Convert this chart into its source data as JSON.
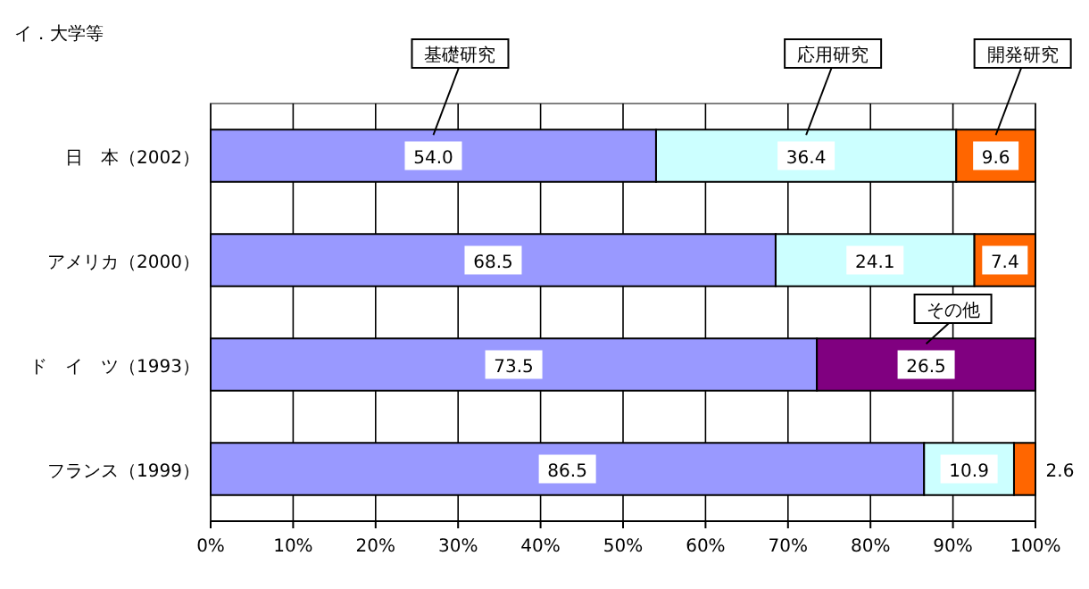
{
  "chart_data": {
    "type": "bar",
    "orientation": "horizontal",
    "stacked": true,
    "title": "イ．大学等",
    "categories": [
      "日　本（2002）",
      "アメリカ（2000）",
      "ド　イ　ツ（1993）",
      "フランス（1999）"
    ],
    "series": [
      {
        "name": "基礎研究",
        "color": "#9999ff",
        "values": [
          54.0,
          68.5,
          73.5,
          86.5
        ],
        "value_labels": [
          "54.0",
          "68.5",
          "73.5",
          "86.5"
        ]
      },
      {
        "name": "応用研究",
        "color": "#ccffff",
        "values": [
          36.4,
          24.1,
          null,
          10.9
        ],
        "value_labels": [
          "36.4",
          "24.1",
          null,
          "10.9"
        ]
      },
      {
        "name": "開発研究",
        "color": "#ff6600",
        "values": [
          9.6,
          7.4,
          null,
          2.6
        ],
        "value_labels": [
          "9.6",
          "7.4",
          null,
          "2.6"
        ]
      },
      {
        "name": "その他",
        "color": "#800080",
        "values": [
          null,
          null,
          26.5,
          null
        ],
        "value_labels": [
          null,
          null,
          "26.5",
          null
        ]
      }
    ],
    "xlim": [
      0,
      100
    ],
    "xticks": [
      {
        "value": 0,
        "label": "0%"
      },
      {
        "value": 10,
        "label": "10%"
      },
      {
        "value": 20,
        "label": "20%"
      },
      {
        "value": 30,
        "label": "30%"
      },
      {
        "value": 40,
        "label": "40%"
      },
      {
        "value": 50,
        "label": "50%"
      },
      {
        "value": 60,
        "label": "60%"
      },
      {
        "value": 70,
        "label": "70%"
      },
      {
        "value": 80,
        "label": "80%"
      },
      {
        "value": 90,
        "label": "90%"
      },
      {
        "value": 100,
        "label": "100%"
      }
    ],
    "grid": "x"
  }
}
